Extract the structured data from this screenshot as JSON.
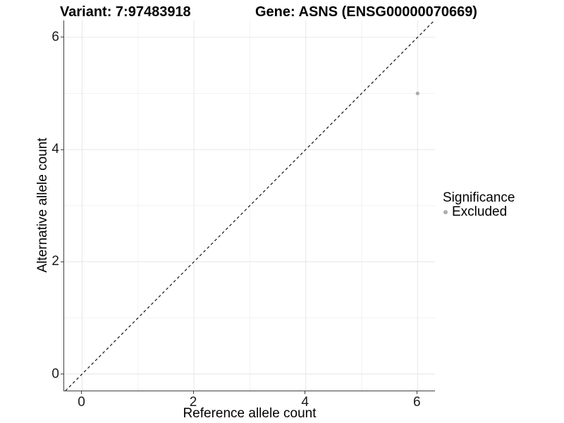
{
  "figure": {
    "title_left": "Variant: 7:97483918",
    "title_right": "Gene: ASNS (ENSG00000070669)"
  },
  "chart_data": {
    "type": "scatter",
    "title_left": "Variant: 7:97483918",
    "title_right": "Gene: ASNS (ENSG00000070669)",
    "xlabel": "Reference allele count",
    "ylabel": "Alternative allele count",
    "xlim": [
      -0.31,
      6.33
    ],
    "ylim": [
      -0.3,
      6.31
    ],
    "x_ticks": [
      0,
      2,
      4,
      6
    ],
    "y_ticks": [
      0,
      2,
      4,
      6
    ],
    "x_minor_ticks": [
      1,
      3,
      5
    ],
    "y_minor_ticks": [
      1,
      3,
      5
    ],
    "grid": true,
    "identity_line": {
      "style": "dashed",
      "color": "#000000",
      "from": [
        -0.3,
        -0.3
      ],
      "to": [
        6.3,
        6.3
      ]
    },
    "series": [
      {
        "name": "Excluded",
        "color": "#acacac",
        "points": [
          {
            "x": 6,
            "y": 5
          }
        ]
      }
    ],
    "legend": {
      "title": "Significance",
      "position": "right",
      "items": [
        {
          "label": "Excluded",
          "color": "#acacac"
        }
      ]
    },
    "colors": {
      "grid_major": "#e6e6e6",
      "grid_minor": "#f2f2f2",
      "axis_line": "#404040",
      "tick_text": "#1a1a1a"
    }
  }
}
